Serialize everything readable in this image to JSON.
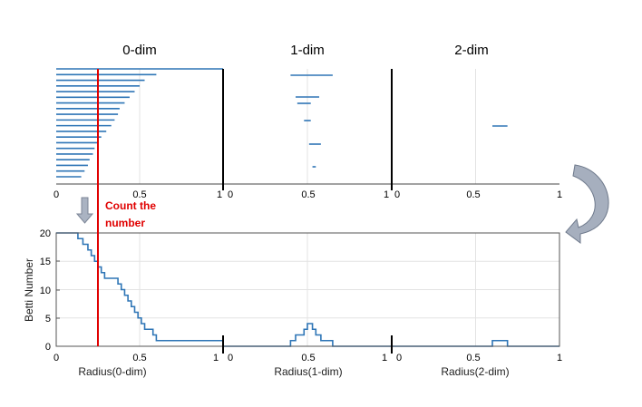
{
  "panels": [
    {
      "id": "0",
      "title": "0-dim",
      "xlabel": "Radius(0-dim)"
    },
    {
      "id": "1",
      "title": "1-dim",
      "xlabel": "Radius(1-dim)"
    },
    {
      "id": "2",
      "title": "2-dim",
      "xlabel": "Radius(2-dim)"
    }
  ],
  "x_ticks": [
    "0",
    "0.5",
    "1"
  ],
  "ylabel": "Betti Number",
  "y_ticks": [
    "0",
    "5",
    "10",
    "15",
    "20"
  ],
  "annotation": {
    "line1": "Count the",
    "line2": "number"
  },
  "colors": {
    "series": "#2e75b6",
    "marker": "#e00000",
    "arrow": "#9aa4b4",
    "grid": "#e3e3e3"
  },
  "chart_data": {
    "type": "line",
    "barcodes": {
      "0-dim": [
        [
          0,
          1
        ],
        [
          0,
          0.6
        ],
        [
          0,
          0.53
        ],
        [
          0,
          0.5
        ],
        [
          0,
          0.47
        ],
        [
          0,
          0.44
        ],
        [
          0,
          0.41
        ],
        [
          0,
          0.38
        ],
        [
          0,
          0.37
        ],
        [
          0,
          0.35
        ],
        [
          0,
          0.33
        ],
        [
          0,
          0.3
        ],
        [
          0,
          0.27
        ],
        [
          0,
          0.25
        ],
        [
          0,
          0.23
        ],
        [
          0,
          0.22
        ],
        [
          0,
          0.2
        ],
        [
          0,
          0.19
        ],
        [
          0,
          0.17
        ],
        [
          0,
          0.15
        ]
      ],
      "1-dim": [
        [
          0.4,
          0.65
        ],
        [
          0.43,
          0.57
        ],
        [
          0.44,
          0.52
        ],
        [
          0.48,
          0.52
        ],
        [
          0.51,
          0.58
        ],
        [
          0.53,
          0.55
        ]
      ],
      "2-dim": [
        [
          0.6,
          0.69
        ]
      ]
    },
    "betti": {
      "0-dim": {
        "x": [
          0,
          0.13,
          0.16,
          0.19,
          0.21,
          0.23,
          0.25,
          0.27,
          0.29,
          0.37,
          0.39,
          0.41,
          0.43,
          0.45,
          0.47,
          0.49,
          0.51,
          0.53,
          0.58,
          0.6,
          1
        ],
        "y": [
          20,
          19,
          18,
          17,
          16,
          15,
          14,
          13,
          12,
          11,
          10,
          9,
          8,
          7,
          6,
          5,
          4,
          3,
          2,
          1,
          1
        ]
      },
      "1-dim": {
        "x": [
          0,
          0.4,
          0.43,
          0.48,
          0.5,
          0.53,
          0.55,
          0.58,
          0.6,
          0.65,
          1
        ],
        "y": [
          0,
          1,
          2,
          3,
          4,
          3,
          2,
          1,
          1,
          0,
          0
        ]
      },
      "2-dim": {
        "x": [
          0,
          0.6,
          0.69,
          1
        ],
        "y": [
          0,
          1,
          0,
          0
        ]
      }
    },
    "marker_radius": 0.25,
    "xlim": [
      0,
      1
    ],
    "ylim": [
      0,
      20
    ],
    "grid": true
  }
}
